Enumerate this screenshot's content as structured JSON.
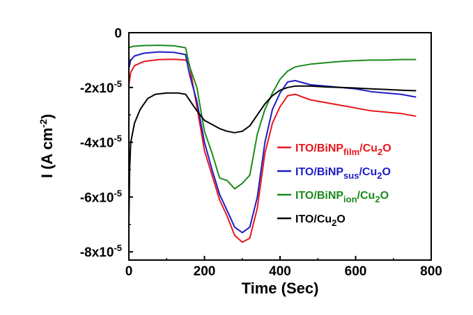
{
  "chart_data": {
    "type": "line",
    "xlabel": "Time (Sec)",
    "ylabel": {
      "base": "I (A cm",
      "sup": "-2",
      "tail": ")"
    },
    "xlim": [
      0,
      800
    ],
    "ylim": [
      -8.3e-05,
      0
    ],
    "x_ticks": [
      {
        "value": 0,
        "label": "0"
      },
      {
        "value": 200,
        "label": "200"
      },
      {
        "value": 400,
        "label": "400"
      },
      {
        "value": 600,
        "label": "600"
      },
      {
        "value": 800,
        "label": "800"
      }
    ],
    "y_ticks": [
      {
        "value": 0,
        "mant": "0",
        "exp": ""
      },
      {
        "value": -2e-05,
        "mant": "-2x10",
        "exp": "-5"
      },
      {
        "value": -4e-05,
        "mant": "-4x10",
        "exp": "-5"
      },
      {
        "value": -6e-05,
        "mant": "-6x10",
        "exp": "-5"
      },
      {
        "value": -8e-05,
        "mant": "-8x10",
        "exp": "-5"
      }
    ],
    "grid": false,
    "legend_position": "right-middle",
    "series": [
      {
        "name": "ITO/BiNPfilm/Cu2O",
        "legend": {
          "prefix": "ITO/BiNP",
          "sub": "film",
          "mid": "/Cu",
          "sub2": "2",
          "suffix": "O"
        },
        "color": "#e8161b",
        "points": [
          [
            0,
            -1.9e-05
          ],
          [
            5,
            -1.45e-05
          ],
          [
            15,
            -1.2e-05
          ],
          [
            40,
            -1.05e-05
          ],
          [
            80,
            -9.8e-06
          ],
          [
            120,
            -9.7e-06
          ],
          [
            150,
            -1e-05
          ],
          [
            160,
            -1.15e-05
          ],
          [
            180,
            -2.7e-05
          ],
          [
            200,
            -4.3e-05
          ],
          [
            220,
            -5.2e-05
          ],
          [
            240,
            -6.1e-05
          ],
          [
            260,
            -6.7e-05
          ],
          [
            280,
            -7.4e-05
          ],
          [
            300,
            -7.65e-05
          ],
          [
            320,
            -7.5e-05
          ],
          [
            340,
            -6.4e-05
          ],
          [
            360,
            -4.4e-05
          ],
          [
            380,
            -3.3e-05
          ],
          [
            400,
            -2.7e-05
          ],
          [
            420,
            -2.3e-05
          ],
          [
            440,
            -2.25e-05
          ],
          [
            480,
            -2.45e-05
          ],
          [
            520,
            -2.55e-05
          ],
          [
            560,
            -2.65e-05
          ],
          [
            600,
            -2.75e-05
          ],
          [
            640,
            -2.85e-05
          ],
          [
            680,
            -2.9e-05
          ],
          [
            720,
            -2.95e-05
          ],
          [
            760,
            -3.05e-05
          ]
        ]
      },
      {
        "name": "ITO/BiNPsus/Cu2O",
        "legend": {
          "prefix": "ITO/BiNP",
          "sub": "sus",
          "mid": "/Cu",
          "sub2": "2",
          "suffix": "O"
        },
        "color": "#1d1cc4",
        "points": [
          [
            0,
            -1.3e-05
          ],
          [
            5,
            -1e-05
          ],
          [
            15,
            -8.5e-06
          ],
          [
            40,
            -7.5e-06
          ],
          [
            80,
            -7e-06
          ],
          [
            120,
            -7.2e-06
          ],
          [
            150,
            -8e-06
          ],
          [
            160,
            -1.5e-05
          ],
          [
            180,
            -2.5e-05
          ],
          [
            200,
            -4e-05
          ],
          [
            220,
            -5e-05
          ],
          [
            240,
            -5.9e-05
          ],
          [
            260,
            -6.5e-05
          ],
          [
            280,
            -7.1e-05
          ],
          [
            300,
            -7.3e-05
          ],
          [
            320,
            -7.1e-05
          ],
          [
            340,
            -6e-05
          ],
          [
            360,
            -4e-05
          ],
          [
            380,
            -2.8e-05
          ],
          [
            400,
            -2.2e-05
          ],
          [
            420,
            -1.8e-05
          ],
          [
            440,
            -1.75e-05
          ],
          [
            480,
            -1.9e-05
          ],
          [
            520,
            -1.95e-05
          ],
          [
            560,
            -2e-05
          ],
          [
            600,
            -2.05e-05
          ],
          [
            640,
            -2.15e-05
          ],
          [
            680,
            -2.2e-05
          ],
          [
            720,
            -2.25e-05
          ],
          [
            760,
            -2.35e-05
          ]
        ]
      },
      {
        "name": "ITO/BiNPion/Cu2O",
        "legend": {
          "prefix": "ITO/BiNP",
          "sub": "ion",
          "mid": "/Cu",
          "sub2": "2",
          "suffix": "O"
        },
        "color": "#1a8a1a",
        "points": [
          [
            0,
            -5.5e-06
          ],
          [
            10,
            -5e-06
          ],
          [
            40,
            -4.7e-06
          ],
          [
            80,
            -4.6e-06
          ],
          [
            120,
            -4.8e-06
          ],
          [
            150,
            -5.5e-06
          ],
          [
            160,
            -1.2e-05
          ],
          [
            180,
            -2e-05
          ],
          [
            200,
            -3.6e-05
          ],
          [
            220,
            -4.4e-05
          ],
          [
            240,
            -5.3e-05
          ],
          [
            260,
            -5.4e-05
          ],
          [
            280,
            -5.7e-05
          ],
          [
            300,
            -5.5e-05
          ],
          [
            320,
            -5.2e-05
          ],
          [
            340,
            -3.7e-05
          ],
          [
            360,
            -2.8e-05
          ],
          [
            380,
            -2.2e-05
          ],
          [
            400,
            -1.7e-05
          ],
          [
            420,
            -1.4e-05
          ],
          [
            440,
            -1.25e-05
          ],
          [
            480,
            -1.15e-05
          ],
          [
            520,
            -1.1e-05
          ],
          [
            560,
            -1.05e-05
          ],
          [
            600,
            -1.02e-05
          ],
          [
            640,
            -1e-05
          ],
          [
            680,
            -1e-05
          ],
          [
            720,
            -9.8e-06
          ],
          [
            760,
            -9.8e-06
          ]
        ]
      },
      {
        "name": "ITO/Cu2O",
        "legend": {
          "prefix": "ITO/Cu",
          "sub": "2",
          "mid": "O",
          "sub2": "",
          "suffix": ""
        },
        "color": "#000000",
        "points": [
          [
            0,
            -7e-05
          ],
          [
            2,
            -5e-05
          ],
          [
            5,
            -4e-05
          ],
          [
            15,
            -3.3e-05
          ],
          [
            30,
            -2.8e-05
          ],
          [
            50,
            -2.4e-05
          ],
          [
            70,
            -2.25e-05
          ],
          [
            100,
            -2.2e-05
          ],
          [
            130,
            -2.2e-05
          ],
          [
            150,
            -2.25e-05
          ],
          [
            160,
            -2.45e-05
          ],
          [
            180,
            -2.85e-05
          ],
          [
            200,
            -3.2e-05
          ],
          [
            220,
            -3.35e-05
          ],
          [
            240,
            -3.5e-05
          ],
          [
            260,
            -3.6e-05
          ],
          [
            280,
            -3.65e-05
          ],
          [
            300,
            -3.6e-05
          ],
          [
            320,
            -3.4e-05
          ],
          [
            340,
            -3e-05
          ],
          [
            360,
            -2.6e-05
          ],
          [
            380,
            -2.3e-05
          ],
          [
            400,
            -2.1e-05
          ],
          [
            420,
            -2e-05
          ],
          [
            440,
            -1.95e-05
          ],
          [
            480,
            -1.95e-05
          ],
          [
            520,
            -1.98e-05
          ],
          [
            560,
            -2e-05
          ],
          [
            600,
            -2.02e-05
          ],
          [
            640,
            -2.05e-05
          ],
          [
            680,
            -2.07e-05
          ],
          [
            720,
            -2.1e-05
          ],
          [
            760,
            -2.12e-05
          ]
        ]
      }
    ]
  }
}
